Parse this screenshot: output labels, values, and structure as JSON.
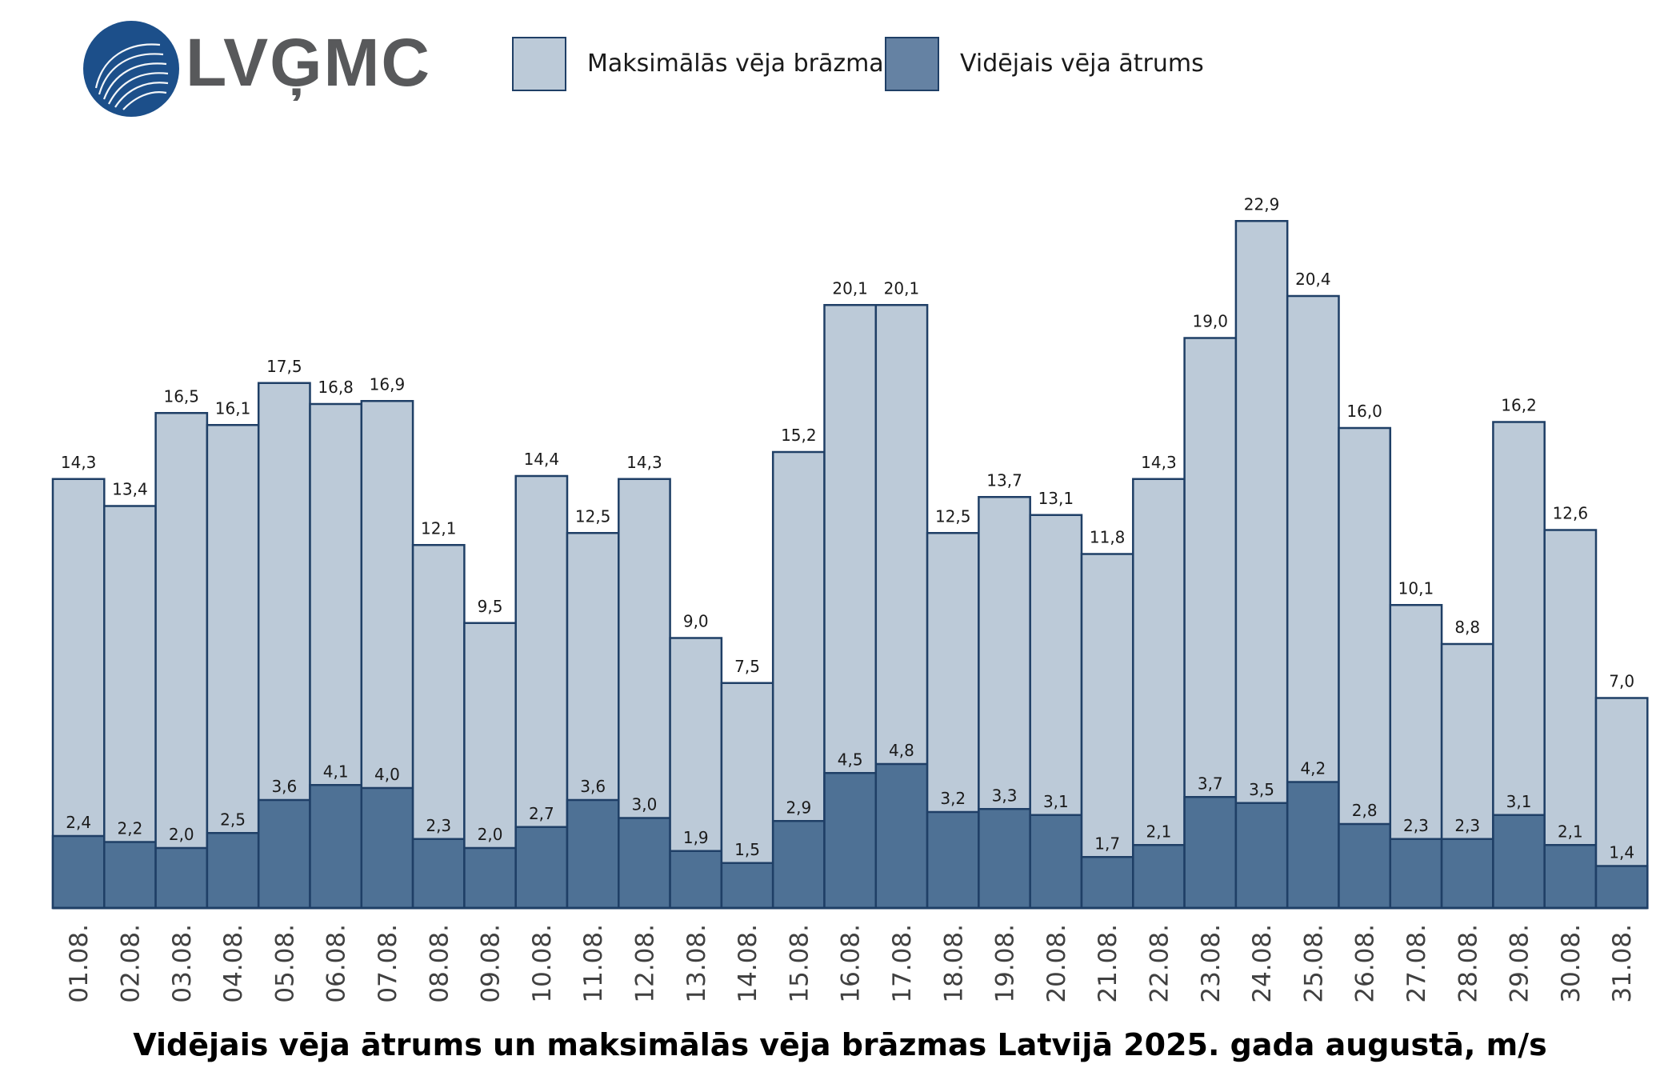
{
  "brand": {
    "name": "LVĢMC",
    "logo_color": "#1c4f8a",
    "text_color": "#58595b"
  },
  "colors": {
    "gust_fill": "#bccad8",
    "mean_fill": "#4e7195",
    "legend_mean_fill": "#6582a3",
    "bar_stroke": "#1f3f66"
  },
  "legend": {
    "items": [
      {
        "label": "Maksimālās vēja brāzmas",
        "color": "#bccad8"
      },
      {
        "label": "Vidējais vēja ātrums",
        "color": "#6582a3"
      }
    ]
  },
  "chart_data": {
    "type": "bar",
    "title": "Vidējais vēja ātrums un maksimālās vēja brāzmas Latvijā 2025. gada augustā, m/s",
    "xlabel": "",
    "ylabel": "",
    "ylim": [
      0,
      23.5
    ],
    "grid": false,
    "legend_position": "top",
    "categories": [
      "01.08.",
      "02.08.",
      "03.08.",
      "04.08.",
      "05.08.",
      "06.08.",
      "07.08.",
      "08.08.",
      "09.08.",
      "10.08.",
      "11.08.",
      "12.08.",
      "13.08.",
      "14.08.",
      "15.08.",
      "16.08.",
      "17.08.",
      "18.08.",
      "19.08.",
      "20.08.",
      "21.08.",
      "22.08.",
      "23.08.",
      "24.08.",
      "25.08.",
      "26.08.",
      "27.08.",
      "28.08.",
      "29.08.",
      "30.08.",
      "31.08."
    ],
    "series": [
      {
        "name": "Maksimālās vēja brāzmas",
        "values": [
          14.3,
          13.4,
          16.5,
          16.1,
          17.5,
          16.8,
          16.9,
          12.1,
          9.5,
          14.4,
          12.5,
          14.3,
          9.0,
          7.5,
          15.2,
          20.1,
          20.1,
          12.5,
          13.7,
          13.1,
          11.8,
          14.3,
          19.0,
          22.9,
          20.4,
          16.0,
          10.1,
          8.8,
          16.2,
          12.6,
          7.0
        ],
        "labels": [
          "14,3",
          "13,4",
          "16,5",
          "16,1",
          "17,5",
          "16,8",
          "16,9",
          "12,1",
          "9,5",
          "14,4",
          "12,5",
          "14,3",
          "9,0",
          "7,5",
          "15,2",
          "20,1",
          "20,1",
          "12,5",
          "13,7",
          "13,1",
          "11,8",
          "14,3",
          "19,0",
          "22,9",
          "20,4",
          "16,0",
          "10,1",
          "8,8",
          "16,2",
          "12,6",
          "7,0"
        ]
      },
      {
        "name": "Vidējais vēja ātrums",
        "values": [
          2.4,
          2.2,
          2.0,
          2.5,
          3.6,
          4.1,
          4.0,
          2.3,
          2.0,
          2.7,
          3.6,
          3.0,
          1.9,
          1.5,
          2.9,
          4.5,
          4.8,
          3.2,
          3.3,
          3.1,
          1.7,
          2.1,
          3.7,
          3.5,
          4.2,
          2.8,
          2.3,
          2.3,
          3.1,
          2.1,
          1.4
        ],
        "labels": [
          "2,4",
          "2,2",
          "2,0",
          "2,5",
          "3,6",
          "4,1",
          "4,0",
          "2,3",
          "2,0",
          "2,7",
          "3,6",
          "3,0",
          "1,9",
          "1,5",
          "2,9",
          "4,5",
          "4,8",
          "3,2",
          "3,3",
          "3,1",
          "1,7",
          "2,1",
          "3,7",
          "3,5",
          "4,2",
          "2,8",
          "2,3",
          "2,3",
          "3,1",
          "2,1",
          "1,4"
        ]
      }
    ]
  }
}
